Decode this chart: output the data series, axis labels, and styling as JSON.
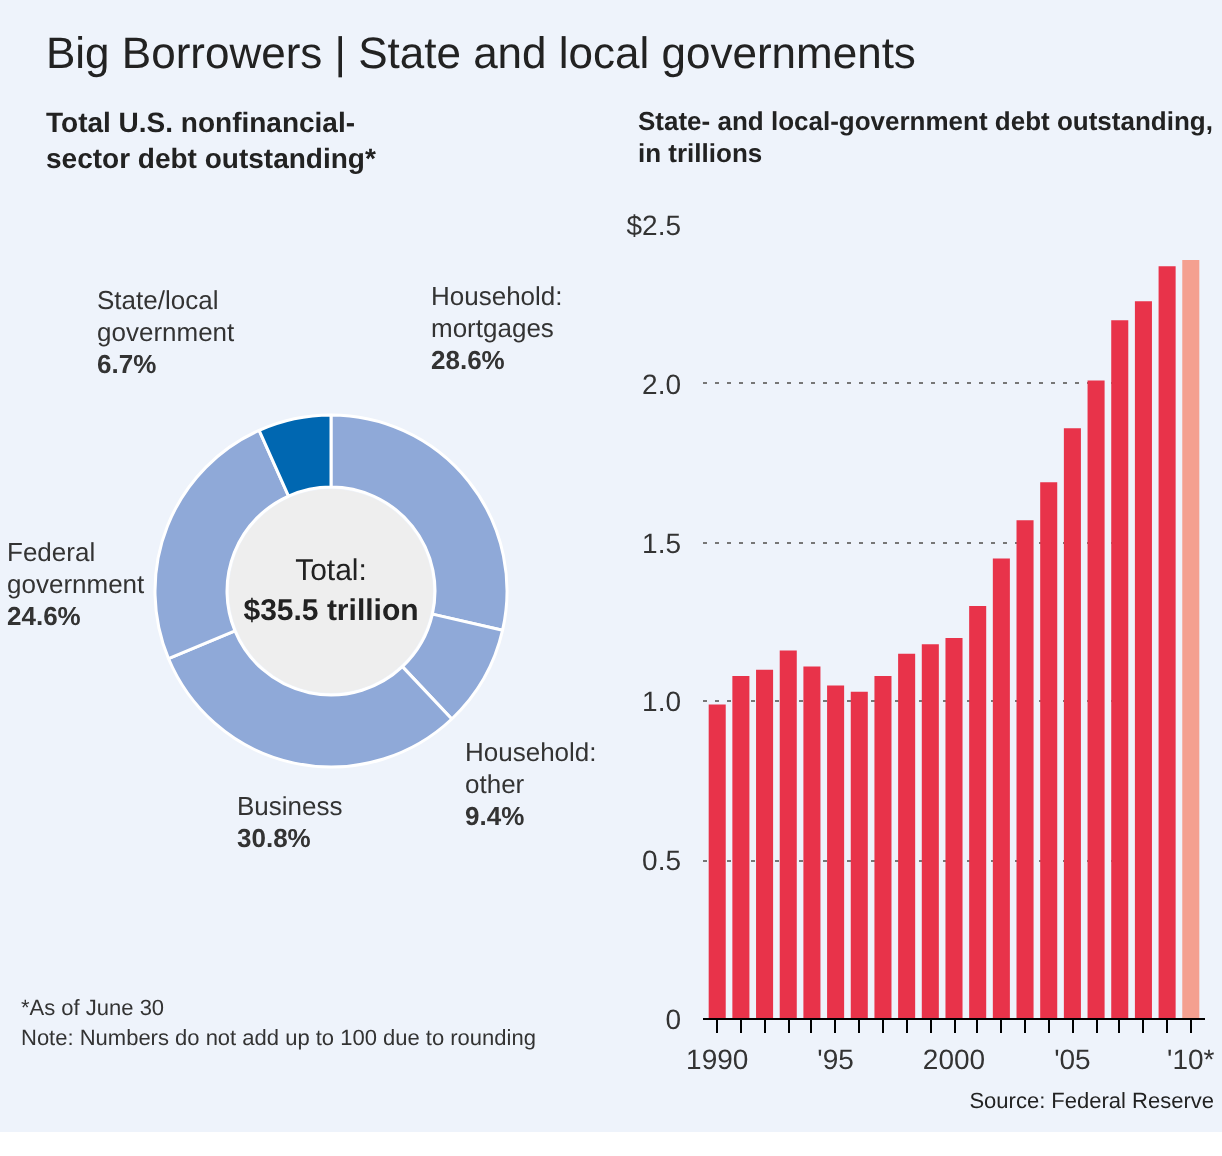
{
  "chart_data": [
    {
      "type": "donut",
      "title": "Big Borrowers | State and local governments",
      "subtitle": "Total U.S. nonfinancial-sector debt outstanding*",
      "categories": [
        "Household: mortgages",
        "Household: other",
        "Business",
        "Federal government",
        "State/local government"
      ],
      "values": [
        28.6,
        9.4,
        30.8,
        24.6,
        6.7
      ],
      "value_labels": [
        "28.6%",
        "9.4%",
        "30.8%",
        "24.6%",
        "6.7%"
      ],
      "colors": [
        "#8fa9d8",
        "#8fa9d8",
        "#8fa9d8",
        "#8fa9d8",
        "#0067b1"
      ],
      "annotations": [
        "Total: $35.5 trillion",
        "*As of June 30",
        "Note: Numbers do not add up to 100 due to rounding"
      ]
    },
    {
      "type": "bar",
      "title": "State- and local-government debt outstanding, in trillions",
      "categories": [
        "1990",
        null,
        null,
        null,
        null,
        "'95",
        null,
        null,
        null,
        null,
        "2000",
        null,
        null,
        null,
        null,
        "'05",
        null,
        null,
        null,
        null,
        "'10*"
      ],
      "values": [
        0.99,
        1.08,
        1.1,
        1.16,
        1.11,
        1.05,
        1.03,
        1.08,
        1.15,
        1.18,
        1.2,
        1.3,
        1.45,
        1.57,
        1.69,
        1.86,
        2.01,
        2.2,
        2.26,
        2.37,
        2.39
      ],
      "colors": [
        "#e8334a",
        "#e8334a",
        "#e8334a",
        "#e8334a",
        "#e8334a",
        "#e8334a",
        "#e8334a",
        "#e8334a",
        "#e8334a",
        "#e8334a",
        "#e8334a",
        "#e8334a",
        "#e8334a",
        "#e8334a",
        "#e8334a",
        "#e8334a",
        "#e8334a",
        "#e8334a",
        "#e8334a",
        "#e8334a",
        "#f4a090"
      ],
      "ylim": [
        0,
        2.5
      ],
      "yticks": [
        0,
        0.5,
        {
          "value": 1.0,
          "label": "1.0"
        },
        1.5,
        {
          "value": 2.0,
          "label": "2.0"
        },
        {
          "value": 2.5,
          "label": "$2.5"
        }
      ],
      "grid": "y",
      "annotations": [
        "Source: Federal Reserve"
      ]
    }
  ]
}
